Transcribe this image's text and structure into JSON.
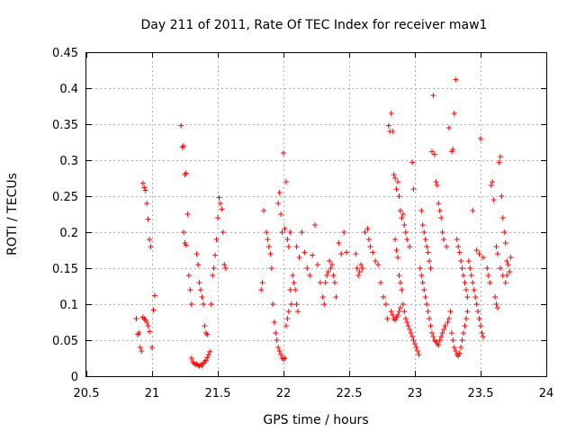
{
  "chart_data": {
    "type": "scatter",
    "title": "Day 211 of 2011, Rate Of TEC Index for receiver maw1",
    "xlabel": "GPS time / hours",
    "ylabel": "ROTI / TECUs",
    "xlim": [
      20.5,
      24
    ],
    "ylim": [
      0,
      0.45
    ],
    "x_ticks": [
      20.5,
      21,
      21.5,
      22,
      22.5,
      23,
      23.5,
      24
    ],
    "x_tick_labels": [
      "20.5",
      "21",
      "21.5",
      "22",
      "22.5",
      "23",
      "23.5",
      "24"
    ],
    "y_ticks": [
      0,
      0.05,
      0.1,
      0.15,
      0.2,
      0.25,
      0.3,
      0.35,
      0.4,
      0.45
    ],
    "y_tick_labels": [
      "0",
      "0.05",
      "0.1",
      "0.15",
      "0.2",
      "0.25",
      "0.3",
      "0.35",
      "0.4",
      "0.45"
    ],
    "grid": true,
    "marker": "+",
    "marker_color": "#ff0000",
    "series": [
      {
        "name": "ROTI",
        "points": [
          [
            20.88,
            0.08
          ],
          [
            20.89,
            0.058
          ],
          [
            20.9,
            0.06
          ],
          [
            20.91,
            0.04
          ],
          [
            20.92,
            0.035
          ],
          [
            20.93,
            0.082
          ],
          [
            20.94,
            0.08
          ],
          [
            20.95,
            0.078
          ],
          [
            20.96,
            0.075
          ],
          [
            20.97,
            0.07
          ],
          [
            20.98,
            0.062
          ],
          [
            21.0,
            0.04
          ],
          [
            21.01,
            0.092
          ],
          [
            21.02,
            0.112
          ],
          [
            20.93,
            0.268
          ],
          [
            20.94,
            0.262
          ],
          [
            20.95,
            0.258
          ],
          [
            20.96,
            0.24
          ],
          [
            20.97,
            0.218
          ],
          [
            20.98,
            0.19
          ],
          [
            20.99,
            0.18
          ],
          [
            21.22,
            0.348
          ],
          [
            21.23,
            0.318
          ],
          [
            21.24,
            0.32
          ],
          [
            21.25,
            0.28
          ],
          [
            21.26,
            0.282
          ],
          [
            21.24,
            0.2
          ],
          [
            21.25,
            0.185
          ],
          [
            21.26,
            0.182
          ],
          [
            21.27,
            0.225
          ],
          [
            21.28,
            0.14
          ],
          [
            21.29,
            0.12
          ],
          [
            21.3,
            0.1
          ],
          [
            21.3,
            0.025
          ],
          [
            21.31,
            0.02
          ],
          [
            21.32,
            0.018
          ],
          [
            21.33,
            0.016
          ],
          [
            21.34,
            0.017
          ],
          [
            21.35,
            0.015
          ],
          [
            21.36,
            0.014
          ],
          [
            21.37,
            0.016
          ],
          [
            21.38,
            0.015
          ],
          [
            21.39,
            0.018
          ],
          [
            21.4,
            0.02
          ],
          [
            21.41,
            0.022
          ],
          [
            21.42,
            0.026
          ],
          [
            21.43,
            0.03
          ],
          [
            21.44,
            0.034
          ],
          [
            21.34,
            0.17
          ],
          [
            21.35,
            0.155
          ],
          [
            21.36,
            0.13
          ],
          [
            21.37,
            0.12
          ],
          [
            21.38,
            0.11
          ],
          [
            21.39,
            0.1
          ],
          [
            21.4,
            0.07
          ],
          [
            21.41,
            0.06
          ],
          [
            21.42,
            0.058
          ],
          [
            21.45,
            0.1
          ],
          [
            21.46,
            0.14
          ],
          [
            21.47,
            0.15
          ],
          [
            21.48,
            0.168
          ],
          [
            21.49,
            0.19
          ],
          [
            21.5,
            0.22
          ],
          [
            21.51,
            0.248
          ],
          [
            21.52,
            0.24
          ],
          [
            21.53,
            0.232
          ],
          [
            21.54,
            0.2
          ],
          [
            21.55,
            0.155
          ],
          [
            21.56,
            0.15
          ],
          [
            21.83,
            0.12
          ],
          [
            21.84,
            0.13
          ],
          [
            21.85,
            0.23
          ],
          [
            21.87,
            0.2
          ],
          [
            21.88,
            0.19
          ],
          [
            21.89,
            0.18
          ],
          [
            21.9,
            0.17
          ],
          [
            21.91,
            0.15
          ],
          [
            21.92,
            0.1
          ],
          [
            21.93,
            0.075
          ],
          [
            21.94,
            0.06
          ],
          [
            21.95,
            0.05
          ],
          [
            21.96,
            0.04
          ],
          [
            21.97,
            0.035
          ],
          [
            21.98,
            0.03
          ],
          [
            21.99,
            0.025
          ],
          [
            22.0,
            0.024
          ],
          [
            22.01,
            0.025
          ],
          [
            21.96,
            0.24
          ],
          [
            21.97,
            0.255
          ],
          [
            21.98,
            0.225
          ],
          [
            21.99,
            0.2
          ],
          [
            22.0,
            0.31
          ],
          [
            22.01,
            0.205
          ],
          [
            22.02,
            0.27
          ],
          [
            22.03,
            0.19
          ],
          [
            22.04,
            0.18
          ],
          [
            22.05,
            0.2
          ],
          [
            22.02,
            0.07
          ],
          [
            22.03,
            0.08
          ],
          [
            22.04,
            0.09
          ],
          [
            22.05,
            0.12
          ],
          [
            22.06,
            0.1
          ],
          [
            22.07,
            0.14
          ],
          [
            22.08,
            0.13
          ],
          [
            22.09,
            0.12
          ],
          [
            22.1,
            0.1
          ],
          [
            22.11,
            0.09
          ],
          [
            22.1,
            0.18
          ],
          [
            22.12,
            0.165
          ],
          [
            22.14,
            0.2
          ],
          [
            22.16,
            0.172
          ],
          [
            22.18,
            0.15
          ],
          [
            22.2,
            0.14
          ],
          [
            22.22,
            0.168
          ],
          [
            22.24,
            0.21
          ],
          [
            22.26,
            0.155
          ],
          [
            22.28,
            0.13
          ],
          [
            22.3,
            0.11
          ],
          [
            22.31,
            0.1
          ],
          [
            22.32,
            0.13
          ],
          [
            22.33,
            0.14
          ],
          [
            22.34,
            0.145
          ],
          [
            22.35,
            0.16
          ],
          [
            22.36,
            0.15
          ],
          [
            22.37,
            0.155
          ],
          [
            22.38,
            0.14
          ],
          [
            22.39,
            0.13
          ],
          [
            22.4,
            0.11
          ],
          [
            22.42,
            0.185
          ],
          [
            22.44,
            0.17
          ],
          [
            22.46,
            0.2
          ],
          [
            22.48,
            0.172
          ],
          [
            22.55,
            0.17
          ],
          [
            22.56,
            0.15
          ],
          [
            22.57,
            0.14
          ],
          [
            22.58,
            0.145
          ],
          [
            22.59,
            0.155
          ],
          [
            22.6,
            0.15
          ],
          [
            22.62,
            0.2
          ],
          [
            22.64,
            0.205
          ],
          [
            22.65,
            0.19
          ],
          [
            22.66,
            0.18
          ],
          [
            22.68,
            0.172
          ],
          [
            22.7,
            0.16
          ],
          [
            22.72,
            0.155
          ],
          [
            22.74,
            0.13
          ],
          [
            22.76,
            0.11
          ],
          [
            22.78,
            0.1
          ],
          [
            22.79,
            0.08
          ],
          [
            22.8,
            0.348
          ],
          [
            22.81,
            0.34
          ],
          [
            22.82,
            0.365
          ],
          [
            22.83,
            0.34
          ],
          [
            22.84,
            0.28
          ],
          [
            22.85,
            0.275
          ],
          [
            22.86,
            0.26
          ],
          [
            22.87,
            0.27
          ],
          [
            22.88,
            0.25
          ],
          [
            22.89,
            0.23
          ],
          [
            22.9,
            0.22
          ],
          [
            22.91,
            0.225
          ],
          [
            22.92,
            0.21
          ],
          [
            22.93,
            0.2
          ],
          [
            22.94,
            0.19
          ],
          [
            22.96,
            0.18
          ],
          [
            22.98,
            0.297
          ],
          [
            22.99,
            0.26
          ],
          [
            22.85,
            0.19
          ],
          [
            22.86,
            0.175
          ],
          [
            22.87,
            0.165
          ],
          [
            22.88,
            0.14
          ],
          [
            22.89,
            0.13
          ],
          [
            22.9,
            0.12
          ],
          [
            22.91,
            0.1
          ],
          [
            22.92,
            0.09
          ],
          [
            22.93,
            0.08
          ],
          [
            22.94,
            0.075
          ],
          [
            22.95,
            0.07
          ],
          [
            22.96,
            0.065
          ],
          [
            22.97,
            0.06
          ],
          [
            22.98,
            0.055
          ],
          [
            22.99,
            0.05
          ],
          [
            23.0,
            0.045
          ],
          [
            23.01,
            0.04
          ],
          [
            23.02,
            0.035
          ],
          [
            23.03,
            0.03
          ],
          [
            22.82,
            0.09
          ],
          [
            22.83,
            0.085
          ],
          [
            22.84,
            0.08
          ],
          [
            22.85,
            0.078
          ],
          [
            22.86,
            0.082
          ],
          [
            22.87,
            0.085
          ],
          [
            22.88,
            0.09
          ],
          [
            22.89,
            0.095
          ],
          [
            23.04,
            0.15
          ],
          [
            23.05,
            0.14
          ],
          [
            23.06,
            0.13
          ],
          [
            23.07,
            0.12
          ],
          [
            23.08,
            0.11
          ],
          [
            23.09,
            0.1
          ],
          [
            23.1,
            0.09
          ],
          [
            23.11,
            0.08
          ],
          [
            23.12,
            0.07
          ],
          [
            23.13,
            0.06
          ],
          [
            23.14,
            0.055
          ],
          [
            23.15,
            0.05
          ],
          [
            23.16,
            0.048
          ],
          [
            23.17,
            0.045
          ],
          [
            23.18,
            0.043
          ],
          [
            23.19,
            0.05
          ],
          [
            23.2,
            0.055
          ],
          [
            23.21,
            0.06
          ],
          [
            23.22,
            0.065
          ],
          [
            23.23,
            0.07
          ],
          [
            23.05,
            0.23
          ],
          [
            23.06,
            0.21
          ],
          [
            23.07,
            0.2
          ],
          [
            23.08,
            0.19
          ],
          [
            23.09,
            0.18
          ],
          [
            23.1,
            0.172
          ],
          [
            23.11,
            0.16
          ],
          [
            23.12,
            0.15
          ],
          [
            23.13,
            0.312
          ],
          [
            23.14,
            0.39
          ],
          [
            23.15,
            0.308
          ],
          [
            23.16,
            0.27
          ],
          [
            23.17,
            0.265
          ],
          [
            23.18,
            0.24
          ],
          [
            23.19,
            0.23
          ],
          [
            23.2,
            0.22
          ],
          [
            23.21,
            0.2
          ],
          [
            23.22,
            0.19
          ],
          [
            23.24,
            0.18
          ],
          [
            23.25,
            0.075
          ],
          [
            23.26,
            0.08
          ],
          [
            23.27,
            0.09
          ],
          [
            23.28,
            0.06
          ],
          [
            23.29,
            0.05
          ],
          [
            23.3,
            0.04
          ],
          [
            23.31,
            0.035
          ],
          [
            23.32,
            0.03
          ],
          [
            23.33,
            0.028
          ],
          [
            23.34,
            0.032
          ],
          [
            23.35,
            0.04
          ],
          [
            23.36,
            0.05
          ],
          [
            23.37,
            0.06
          ],
          [
            23.38,
            0.07
          ],
          [
            23.39,
            0.08
          ],
          [
            23.4,
            0.09
          ],
          [
            23.26,
            0.345
          ],
          [
            23.28,
            0.312
          ],
          [
            23.29,
            0.315
          ],
          [
            23.3,
            0.365
          ],
          [
            23.31,
            0.412
          ],
          [
            23.32,
            0.19
          ],
          [
            23.33,
            0.18
          ],
          [
            23.34,
            0.172
          ],
          [
            23.35,
            0.16
          ],
          [
            23.36,
            0.15
          ],
          [
            23.37,
            0.14
          ],
          [
            23.38,
            0.13
          ],
          [
            23.39,
            0.12
          ],
          [
            23.4,
            0.11
          ],
          [
            23.41,
            0.16
          ],
          [
            23.42,
            0.15
          ],
          [
            23.43,
            0.14
          ],
          [
            23.44,
            0.13
          ],
          [
            23.45,
            0.12
          ],
          [
            23.46,
            0.11
          ],
          [
            23.47,
            0.1
          ],
          [
            23.48,
            0.09
          ],
          [
            23.49,
            0.08
          ],
          [
            23.5,
            0.07
          ],
          [
            23.51,
            0.06
          ],
          [
            23.52,
            0.055
          ],
          [
            23.44,
            0.23
          ],
          [
            23.47,
            0.175
          ],
          [
            23.49,
            0.17
          ],
          [
            23.5,
            0.33
          ],
          [
            23.52,
            0.165
          ],
          [
            23.55,
            0.15
          ],
          [
            23.56,
            0.14
          ],
          [
            23.57,
            0.13
          ],
          [
            23.58,
            0.265
          ],
          [
            23.59,
            0.27
          ],
          [
            23.6,
            0.245
          ],
          [
            23.61,
            0.11
          ],
          [
            23.62,
            0.1
          ],
          [
            23.63,
            0.095
          ],
          [
            23.64,
            0.297
          ],
          [
            23.65,
            0.305
          ],
          [
            23.66,
            0.25
          ],
          [
            23.67,
            0.22
          ],
          [
            23.68,
            0.2
          ],
          [
            23.69,
            0.185
          ],
          [
            23.7,
            0.16
          ],
          [
            23.71,
            0.155
          ],
          [
            23.72,
            0.145
          ],
          [
            23.73,
            0.165
          ],
          [
            23.62,
            0.18
          ],
          [
            23.63,
            0.17
          ],
          [
            23.65,
            0.15
          ],
          [
            23.67,
            0.14
          ],
          [
            23.69,
            0.13
          ],
          [
            23.7,
            0.14
          ]
        ]
      }
    ]
  }
}
